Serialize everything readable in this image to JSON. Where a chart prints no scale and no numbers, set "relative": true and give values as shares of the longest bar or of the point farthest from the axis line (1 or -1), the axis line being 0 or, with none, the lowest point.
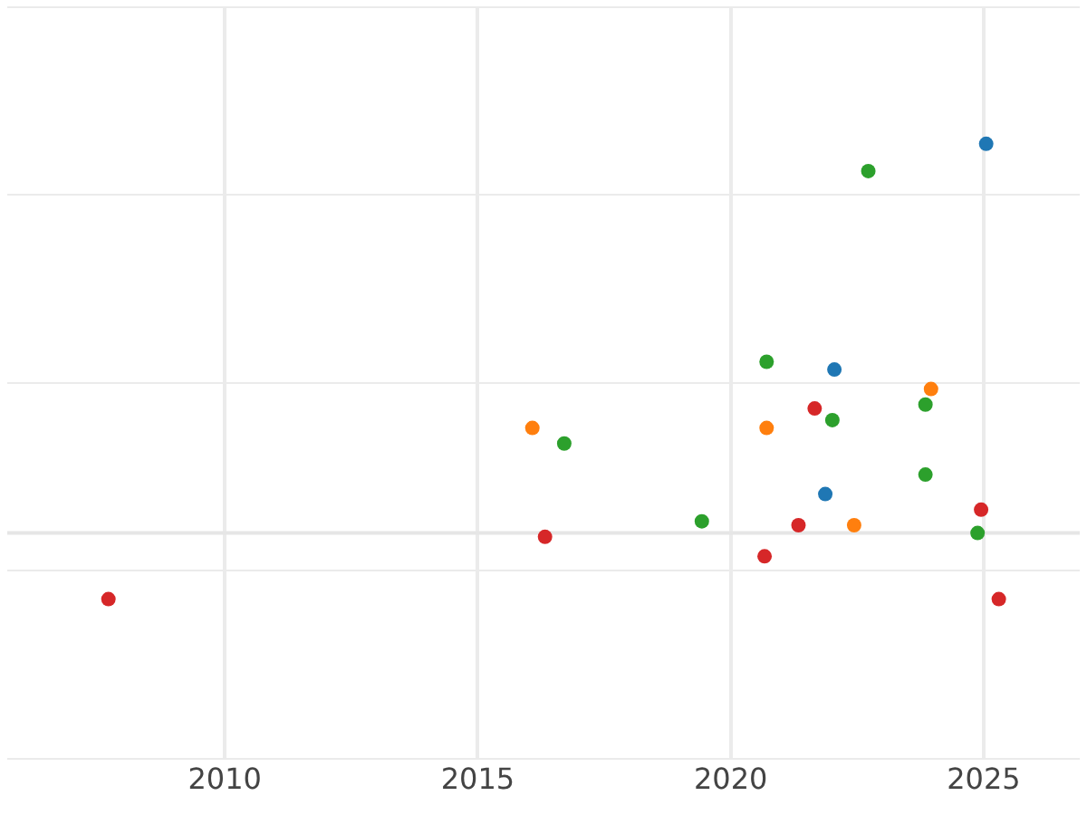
{
  "chart_data": {
    "type": "scatter",
    "relative": true,
    "xlim": [
      2005.7,
      2026.9
    ],
    "xticks": [
      2010,
      2015,
      2020,
      2025
    ],
    "grid": true,
    "legend": false,
    "marker": "circle",
    "series": [
      {
        "color": "#1f77b4",
        "x": [
          2025.05,
          2022.05,
          2021.87
        ],
        "values": [
          1,
          0.42,
          0.1
        ]
      },
      {
        "color": "#ff7f0e",
        "x": [
          2016.08,
          2020.71,
          2023.96,
          2022.44
        ],
        "values": [
          0.27,
          0.27,
          0.37,
          0.02
        ]
      },
      {
        "color": "#2ca02c",
        "x": [
          2022.72,
          2020.71,
          2016.71,
          2022.01,
          2023.85,
          2023.85,
          2019.43,
          2024.88
        ],
        "values": [
          0.93,
          0.44,
          0.23,
          0.29,
          0.33,
          0.15,
          0.03,
          0
        ]
      },
      {
        "color": "#d62728",
        "x": [
          2007.7,
          2021.66,
          2016.33,
          2021.34,
          2020.67,
          2024.95,
          2025.3
        ],
        "values": [
          -0.17,
          0.32,
          -0.01,
          0.02,
          -0.06,
          0.06,
          -0.17
        ]
      }
    ]
  }
}
